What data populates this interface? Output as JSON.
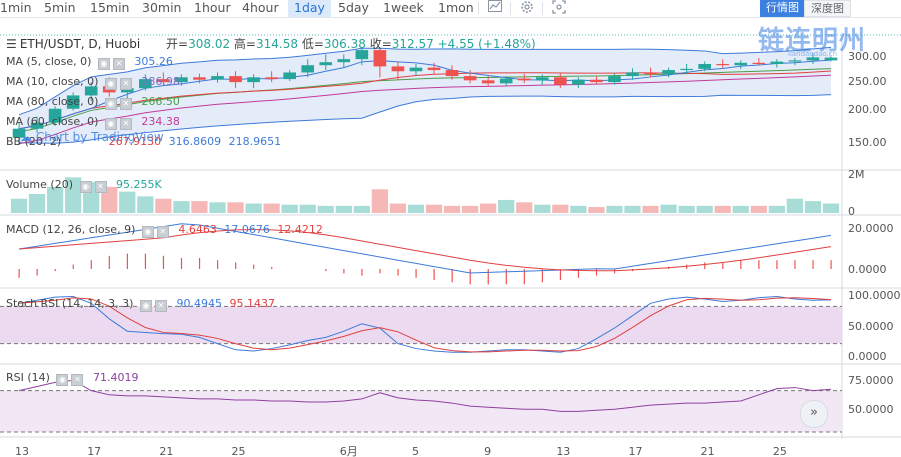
{
  "toolbar": {
    "timeframes": [
      "1min",
      "5min",
      "15min",
      "30min",
      "1hour",
      "4hour",
      "1day",
      "5day",
      "1week",
      "1mon"
    ],
    "active": "1day",
    "icons": [
      "line-chart-icon",
      "settings-icon",
      "screenshot-icon"
    ],
    "view_candle": "行情图",
    "view_depth": "深度图"
  },
  "legend": {
    "symbol": "ETH/USDT, D, Huobi",
    "open_label": "开=",
    "open": "308.02",
    "high_label": "高=",
    "high": "314.58",
    "low_label": "低=",
    "low": "306.38",
    "close_label": "收=",
    "close": "312.57",
    "change": "+4.55 (+1.48%)",
    "ma5": "MA (5, close, 0)",
    "ma5_value": "305.26",
    "ma10": "MA (10, close, 0)",
    "ma10_value": "286.98",
    "ma80": "MA (80, close, 0)",
    "ma80_value": "266.50",
    "ma60": "MA (60, close, 0)",
    "ma60_value": "234.38",
    "bb": "BB (20, 2)",
    "bb_values": [
      "267.9130",
      "316.8609",
      "218.9651"
    ],
    "volume": "Volume (20)",
    "volume_value": "95.255K",
    "macd": "MACD (12, 26, close, 9)",
    "macd_values": [
      "4.6463",
      "17.0676",
      "12.4212"
    ],
    "stoch": "Stoch RSI (14, 14, 3, 3)",
    "stoch_values": [
      "90.4945",
      "95.1437"
    ],
    "rsi": "RSI (14)",
    "rsi_value": "71.4019"
  },
  "watermark": "链连明州",
  "watermark_sub": "liandaodao.cn",
  "tv_badge": "Chart by TradingView",
  "price_axis": [
    "300.00",
    "250.00",
    "200.00",
    "150.00"
  ],
  "volume_axis": [
    "2M",
    "0"
  ],
  "macd_axis": [
    "20.0000",
    "0.0000"
  ],
  "stoch_axis": [
    "100.0000",
    "50.0000",
    "0.0000"
  ],
  "rsi_axis": [
    "75.0000",
    "50.0000"
  ],
  "date_axis": [
    "13",
    "17",
    "21",
    "25",
    "6月",
    "5",
    "9",
    "13",
    "17",
    "21",
    "25"
  ],
  "colors": {
    "up": "#26a69a",
    "down": "#ef5350",
    "ma5": "#3d7bd9",
    "ma10": "#e04040",
    "bb_fill": "#dfe7f7",
    "stoch_fill": "#ead7ee"
  },
  "chart_data": {
    "type": "candlestick",
    "candles": [
      {
        "o": 180,
        "h": 205,
        "l": 168,
        "c": 195
      },
      {
        "o": 195,
        "h": 215,
        "l": 188,
        "c": 205
      },
      {
        "o": 205,
        "h": 232,
        "l": 200,
        "c": 228
      },
      {
        "o": 228,
        "h": 255,
        "l": 225,
        "c": 250
      },
      {
        "o": 250,
        "h": 272,
        "l": 240,
        "c": 265
      },
      {
        "o": 265,
        "h": 280,
        "l": 248,
        "c": 255
      },
      {
        "o": 255,
        "h": 268,
        "l": 244,
        "c": 262
      },
      {
        "o": 262,
        "h": 285,
        "l": 258,
        "c": 277
      },
      {
        "o": 277,
        "h": 288,
        "l": 268,
        "c": 272
      },
      {
        "o": 272,
        "h": 285,
        "l": 266,
        "c": 280
      },
      {
        "o": 280,
        "h": 286,
        "l": 270,
        "c": 276
      },
      {
        "o": 276,
        "h": 288,
        "l": 271,
        "c": 282
      },
      {
        "o": 282,
        "h": 290,
        "l": 262,
        "c": 272
      },
      {
        "o": 272,
        "h": 285,
        "l": 262,
        "c": 280
      },
      {
        "o": 280,
        "h": 290,
        "l": 272,
        "c": 277
      },
      {
        "o": 277,
        "h": 292,
        "l": 274,
        "c": 288
      },
      {
        "o": 288,
        "h": 310,
        "l": 280,
        "c": 300
      },
      {
        "o": 300,
        "h": 318,
        "l": 292,
        "c": 305
      },
      {
        "o": 305,
        "h": 318,
        "l": 296,
        "c": 310
      },
      {
        "o": 310,
        "h": 330,
        "l": 300,
        "c": 325
      },
      {
        "o": 325,
        "h": 328,
        "l": 280,
        "c": 298
      },
      {
        "o": 298,
        "h": 305,
        "l": 275,
        "c": 290
      },
      {
        "o": 290,
        "h": 302,
        "l": 282,
        "c": 296
      },
      {
        "o": 296,
        "h": 304,
        "l": 286,
        "c": 292
      },
      {
        "o": 292,
        "h": 300,
        "l": 276,
        "c": 282
      },
      {
        "o": 282,
        "h": 292,
        "l": 270,
        "c": 275
      },
      {
        "o": 275,
        "h": 282,
        "l": 265,
        "c": 270
      },
      {
        "o": 270,
        "h": 282,
        "l": 266,
        "c": 278
      },
      {
        "o": 278,
        "h": 286,
        "l": 270,
        "c": 275
      },
      {
        "o": 275,
        "h": 285,
        "l": 268,
        "c": 280
      },
      {
        "o": 280,
        "h": 286,
        "l": 262,
        "c": 268
      },
      {
        "o": 268,
        "h": 280,
        "l": 262,
        "c": 276
      },
      {
        "o": 276,
        "h": 282,
        "l": 268,
        "c": 272
      },
      {
        "o": 272,
        "h": 286,
        "l": 268,
        "c": 282
      },
      {
        "o": 282,
        "h": 295,
        "l": 276,
        "c": 288
      },
      {
        "o": 288,
        "h": 296,
        "l": 280,
        "c": 285
      },
      {
        "o": 285,
        "h": 296,
        "l": 280,
        "c": 292
      },
      {
        "o": 292,
        "h": 302,
        "l": 286,
        "c": 294
      },
      {
        "o": 294,
        "h": 306,
        "l": 290,
        "c": 302
      },
      {
        "o": 302,
        "h": 310,
        "l": 295,
        "c": 300
      },
      {
        "o": 300,
        "h": 308,
        "l": 294,
        "c": 304
      },
      {
        "o": 304,
        "h": 312,
        "l": 300,
        "c": 302
      },
      {
        "o": 302,
        "h": 310,
        "l": 296,
        "c": 306
      },
      {
        "o": 306,
        "h": 312,
        "l": 300,
        "c": 308
      },
      {
        "o": 308,
        "h": 320,
        "l": 302,
        "c": 313
      },
      {
        "o": 308,
        "h": 314.58,
        "l": 306.38,
        "c": 312.57
      }
    ],
    "volume": [
      0.6,
      0.8,
      1.1,
      1.5,
      1.3,
      1.1,
      0.9,
      0.7,
      0.6,
      0.5,
      0.5,
      0.45,
      0.45,
      0.4,
      0.4,
      0.35,
      0.35,
      0.3,
      0.3,
      0.3,
      1.0,
      0.4,
      0.35,
      0.35,
      0.3,
      0.3,
      0.4,
      0.55,
      0.45,
      0.35,
      0.35,
      0.3,
      0.25,
      0.3,
      0.3,
      0.3,
      0.35,
      0.3,
      0.3,
      0.3,
      0.3,
      0.3,
      0.3,
      0.6,
      0.5,
      0.4
    ],
    "macd_hist": [
      -4,
      -3,
      -1,
      2,
      4,
      6,
      7,
      7,
      6,
      5,
      5,
      4,
      3,
      2,
      1,
      0,
      0,
      -1,
      -2,
      -3,
      -2,
      -3,
      -4,
      -5,
      -6,
      -7,
      -7,
      -7,
      -7,
      -6,
      -5,
      -4,
      -3,
      -2,
      -1,
      0,
      1,
      2,
      3,
      3,
      4,
      4,
      4,
      4,
      4,
      4
    ],
    "rsi": [
      70,
      74,
      78,
      80,
      70,
      66,
      65,
      65,
      64,
      63,
      62,
      62,
      61,
      61,
      60,
      60,
      59,
      59,
      60,
      62,
      68,
      63,
      61,
      60,
      58,
      55,
      54,
      53,
      52,
      52,
      50,
      50,
      51,
      52,
      54,
      56,
      57,
      58,
      58,
      59,
      60,
      66,
      72,
      73,
      70,
      71.4
    ]
  }
}
